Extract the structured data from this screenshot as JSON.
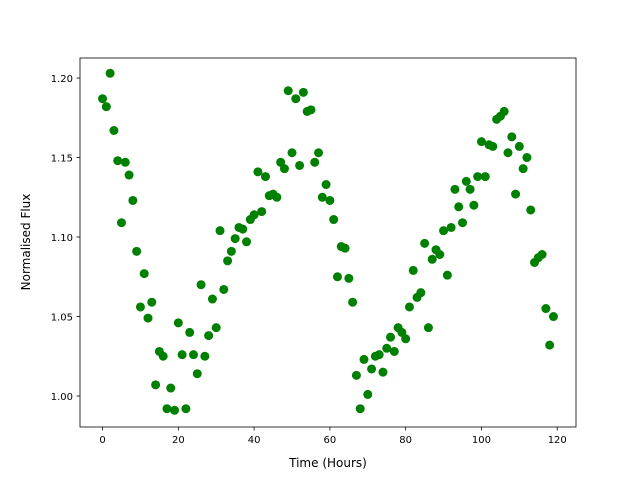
{
  "chart_data": {
    "type": "scatter",
    "xlabel": "Time (Hours)",
    "ylabel": "Normalised Flux",
    "color": "#008000",
    "x": [
      0,
      1,
      2,
      3,
      4,
      5,
      6,
      7,
      8,
      9,
      10,
      11,
      12,
      13,
      14,
      15,
      16,
      17,
      18,
      19,
      20,
      21,
      22,
      23,
      24,
      25,
      26,
      27,
      28,
      29,
      30,
      31,
      32,
      33,
      34,
      35,
      36,
      37,
      38,
      39,
      40,
      41,
      42,
      43,
      44,
      45,
      46,
      47,
      48,
      49,
      50,
      51,
      52,
      53,
      54,
      55,
      56,
      57,
      58,
      59,
      60,
      61,
      62,
      63,
      64,
      65,
      66,
      67,
      68,
      69,
      70,
      71,
      72,
      73,
      74,
      75,
      76,
      77,
      78,
      79,
      80,
      81,
      82,
      83,
      84,
      85,
      86,
      87,
      88,
      89,
      90,
      91,
      92,
      93,
      94,
      95,
      96,
      97,
      98,
      99,
      100,
      101,
      102,
      103,
      104,
      105,
      106,
      107,
      108,
      109,
      110,
      111,
      112,
      113,
      114,
      115,
      116,
      117,
      118,
      119
    ],
    "values": [
      1.187,
      1.182,
      1.203,
      1.167,
      1.148,
      1.109,
      1.147,
      1.139,
      1.123,
      1.091,
      1.056,
      1.077,
      1.049,
      1.059,
      1.007,
      1.028,
      1.025,
      0.992,
      1.005,
      0.991,
      1.046,
      1.026,
      0.992,
      1.04,
      1.026,
      1.014,
      1.07,
      1.025,
      1.038,
      1.061,
      1.043,
      1.104,
      1.067,
      1.085,
      1.091,
      1.099,
      1.106,
      1.105,
      1.097,
      1.111,
      1.114,
      1.141,
      1.116,
      1.138,
      1.126,
      1.127,
      1.125,
      1.147,
      1.143,
      1.192,
      1.153,
      1.187,
      1.145,
      1.191,
      1.179,
      1.18,
      1.147,
      1.153,
      1.125,
      1.133,
      1.123,
      1.111,
      1.075,
      1.094,
      1.093,
      1.074,
      1.059,
      1.013,
      0.992,
      1.023,
      1.001,
      1.017,
      1.025,
      1.026,
      1.015,
      1.03,
      1.037,
      1.028,
      1.043,
      1.04,
      1.036,
      1.056,
      1.079,
      1.062,
      1.065,
      1.096,
      1.043,
      1.086,
      1.092,
      1.089,
      1.104,
      1.076,
      1.106,
      1.13,
      1.119,
      1.109,
      1.135,
      1.13,
      1.12,
      1.138,
      1.16,
      1.138,
      1.158,
      1.157,
      1.174,
      1.176,
      1.179,
      1.153,
      1.163,
      1.127,
      1.157,
      1.143,
      1.15,
      1.117,
      1.084,
      1.087,
      1.089,
      1.055,
      1.032,
      1.05
    ],
    "xlim": [
      -5.95,
      124.95
    ],
    "xticks": [
      0,
      20,
      40,
      60,
      80,
      100,
      120
    ],
    "ylim": [
      0.9805,
      1.2126
    ],
    "yticks": [
      {
        "value": 1.0,
        "label": "1.00"
      },
      {
        "value": 1.05,
        "label": "1.05"
      },
      {
        "value": 1.1,
        "label": "1.10"
      },
      {
        "value": 1.15,
        "label": "1.15"
      },
      {
        "value": 1.2,
        "label": "1.20"
      }
    ]
  }
}
